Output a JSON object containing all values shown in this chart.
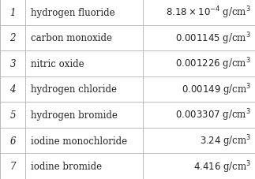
{
  "rows": [
    {
      "rank": "1",
      "name": "hydrogen fluoride",
      "density": "$8.18\\times10^{-4}$ g/cm$^3$"
    },
    {
      "rank": "2",
      "name": "carbon monoxide",
      "density": "$0.001145$ g/cm$^3$"
    },
    {
      "rank": "3",
      "name": "nitric oxide",
      "density": "$0.001226$ g/cm$^3$"
    },
    {
      "rank": "4",
      "name": "hydrogen chloride",
      "density": "$0.00149$ g/cm$^3$"
    },
    {
      "rank": "5",
      "name": "hydrogen bromide",
      "density": "$0.003307$ g/cm$^3$"
    },
    {
      "rank": "6",
      "name": "iodine monochloride",
      "density": "$3.24$ g/cm$^3$"
    },
    {
      "rank": "7",
      "name": "iodine bromide",
      "density": "$4.416$ g/cm$^3$"
    }
  ],
  "vcols": [
    0.0,
    0.1,
    0.56,
    1.0
  ],
  "background_color": "#ffffff",
  "line_color": "#b0b0b0",
  "text_color": "#222222",
  "font_size": 8.5,
  "figwidth": 3.23,
  "figheight": 2.28,
  "dpi": 100
}
